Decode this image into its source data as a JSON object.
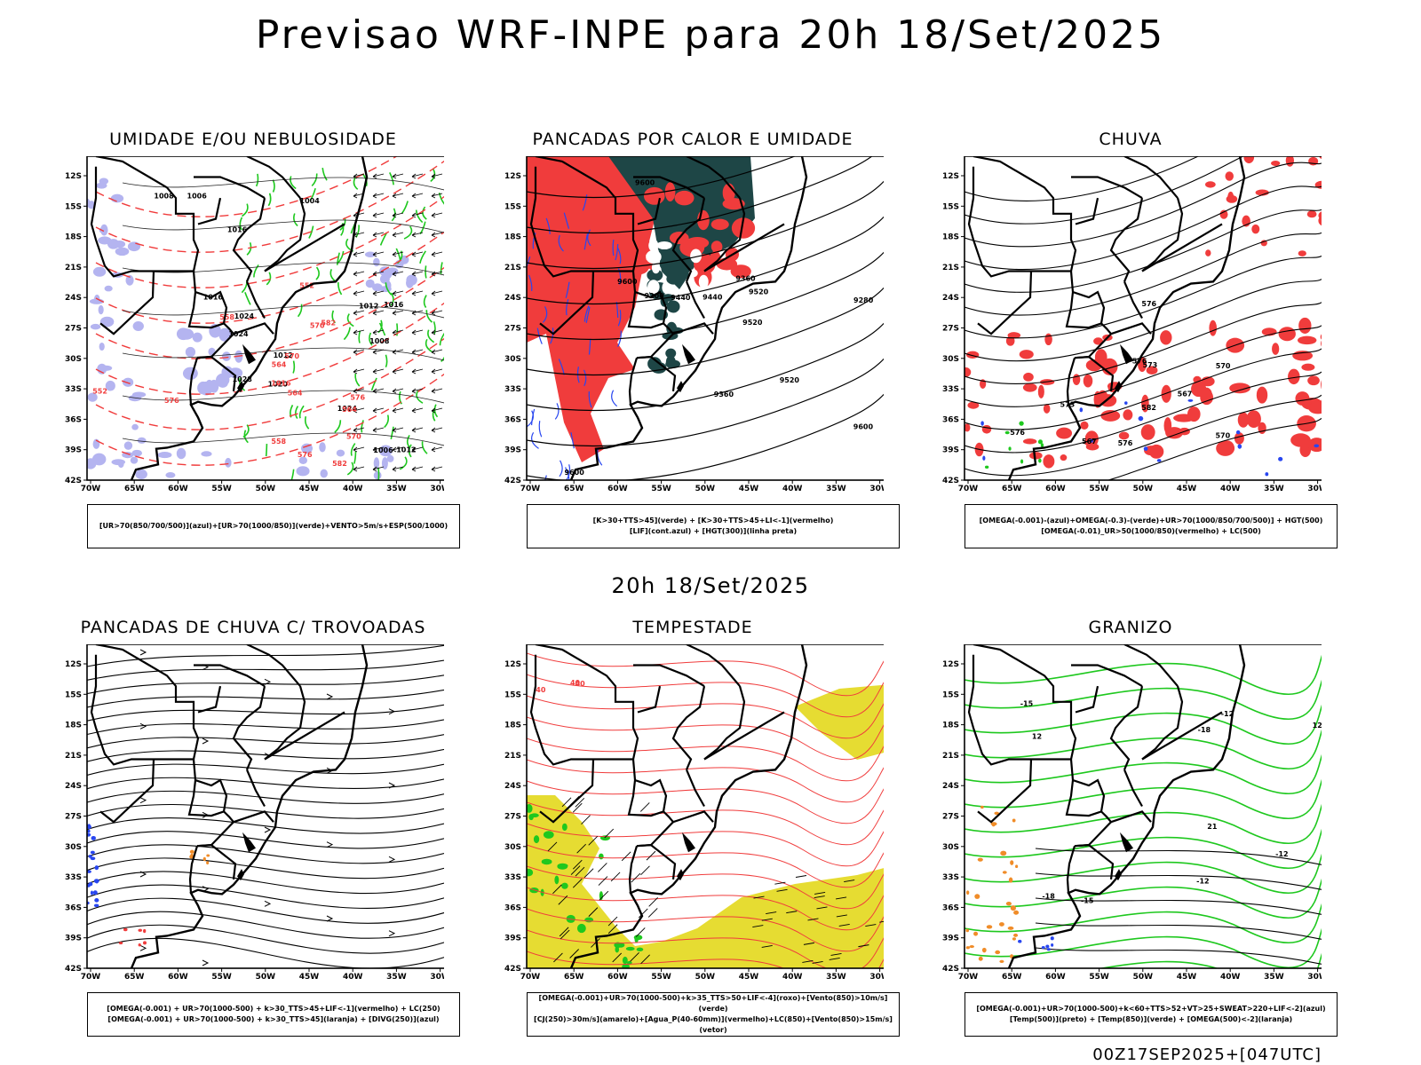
{
  "title": "Previsao WRF-INPE  para 20h 18/Set/2025",
  "mid_title": "20h 18/Set/2025",
  "footer": "00Z17SEP2025+[047UTC]",
  "lat_labels": [
    "12S",
    "15S",
    "18S",
    "21S",
    "24S",
    "27S",
    "30S",
    "33S",
    "36S",
    "39S",
    "42S"
  ],
  "lon_labels": [
    "70W",
    "65W",
    "60W",
    "55W",
    "50W",
    "45W",
    "40W",
    "35W",
    "30W"
  ],
  "colors": {
    "red": "#f03c3c",
    "green": "#1ec81e",
    "blue": "#2846f0",
    "lavender": "#b4b4f0",
    "darkgreen": "#1e4646",
    "yellow": "#e6dc32",
    "orange": "#f08c28"
  },
  "panels": [
    {
      "title": "UMIDADE E/OU NEBULOSIDADE",
      "legend": [
        "[UR>70(850/700/500)](azul)+[UR>70(1000/850)](verde)+VENTO>5m/s+ESP(500/1000)"
      ],
      "contour_labels": [
        "1012",
        "1016",
        "1006",
        "1008",
        "1012",
        "1016",
        "1020",
        "1024",
        "1028",
        "1012",
        "1016",
        "1004",
        "1008",
        "1006",
        "1024",
        "1024",
        "1016",
        "576",
        "570",
        "564",
        "558",
        "552",
        "582",
        "558",
        "570",
        "576",
        "570",
        "564",
        "552",
        "564",
        "576",
        "582"
      ]
    },
    {
      "title": "PANCADAS POR CALOR E UMIDADE",
      "legend": [
        "[K>30+TTS>45](verde) + [K>30+TTS>45+LI<-1](vermelho)",
        "[LIF](cont.azul) + [HGT(300)](linha preta)"
      ],
      "contour_labels": [
        "9600",
        "9600",
        "9600",
        "9600",
        "9520",
        "9520",
        "9520",
        "9440",
        "9440",
        "9360",
        "9360",
        "9280",
        "9200"
      ]
    },
    {
      "title": "CHUVA",
      "legend": [
        "[OMEGA(-0.001)-(azul)+OMEGA(-0.3)-(verde)+UR>70(1000/850/700/500)] + HGT(500)",
        "[OMEGA(-0.01)_UR>50(1000/850)(vermelho) + LC(500)"
      ],
      "contour_labels": [
        "582",
        "576",
        "576",
        "573",
        "570",
        "567",
        "576",
        "573",
        "576",
        "570",
        "567"
      ]
    },
    {
      "title": "PANCADAS DE CHUVA C/ TROVOADAS",
      "legend": [
        "[OMEGA(-0.001) + UR>70(1000-500) + k>30_TTS>45+LIF<-1](vermelho) + LC(250)",
        "[OMEGA(-0.001) + UR>70(1000-500) + k>30_TTS>45](laranja) + [DIVG(250)](azul)"
      ],
      "contour_labels": []
    },
    {
      "title": "TEMPESTADE",
      "legend": [
        "[OMEGA(-0.001)+UR>70(1000-500)+k>35_TTS>50+LIF<-4](roxo)+[Vento(850)>10m/s](verde)",
        "[CJ(250)>30m/s](amarelo)+[Agua_P(40-60mm)](vermelho)+LC(850)+[Vento(850)>15m/s](vetor)"
      ],
      "contour_labels": [
        "40",
        "40",
        "40"
      ]
    },
    {
      "title": "GRANIZO",
      "legend": [
        "[OMEGA(-0.001)+UR>70(1000-500)+k<60+TTS>52+VT>25+SWEAT>220+LIF<-2](azul)",
        "[Temp(500)](preto) + [Temp(850)](verde) + [OMEGA(500)<-2](laranja)"
      ],
      "contour_labels": [
        "12",
        "12",
        "-12",
        "-12",
        "-15",
        "-18",
        "-18",
        "-15",
        "21",
        "-12"
      ]
    }
  ]
}
